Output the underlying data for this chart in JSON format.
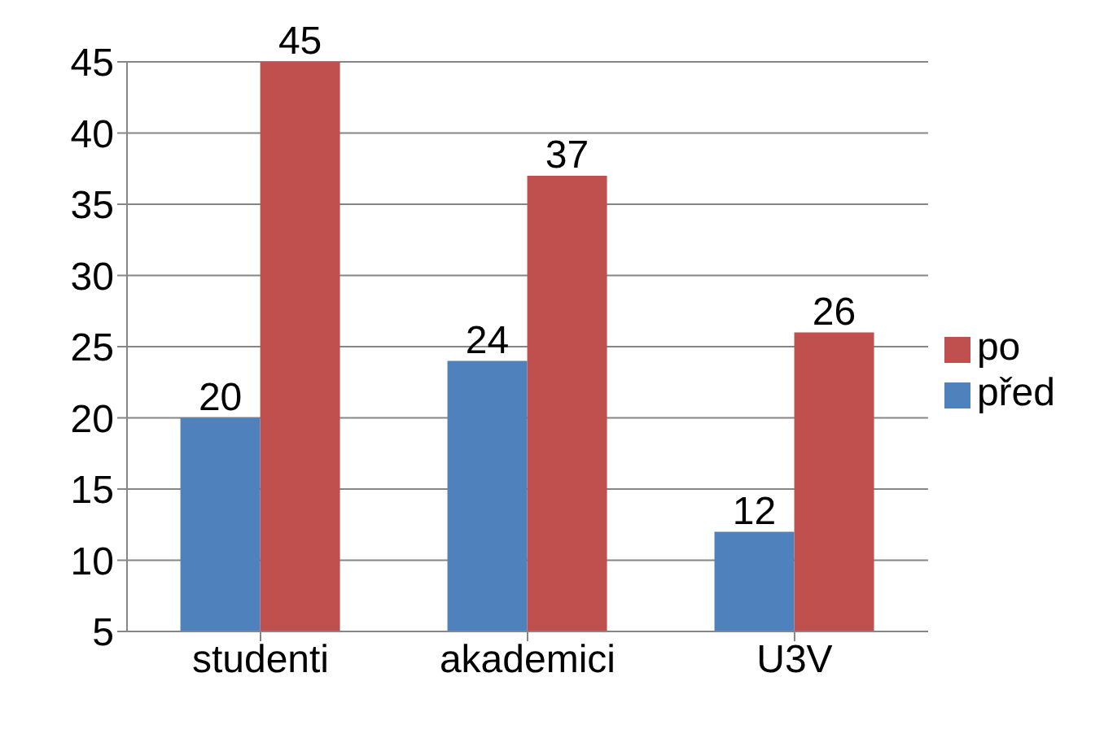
{
  "chart_data": {
    "type": "bar",
    "categories": [
      "studenti",
      "akademici",
      "U3V"
    ],
    "series": [
      {
        "name": "před",
        "color": "#4f81bd",
        "values": [
          20,
          24,
          12
        ]
      },
      {
        "name": "po",
        "color": "#c0504d",
        "values": [
          45,
          37,
          26
        ]
      }
    ],
    "ylim": [
      5,
      45
    ],
    "yticks": [
      5,
      10,
      15,
      20,
      25,
      30,
      35,
      40,
      45
    ],
    "grid": "y",
    "legend": "right",
    "data_labels": true
  }
}
